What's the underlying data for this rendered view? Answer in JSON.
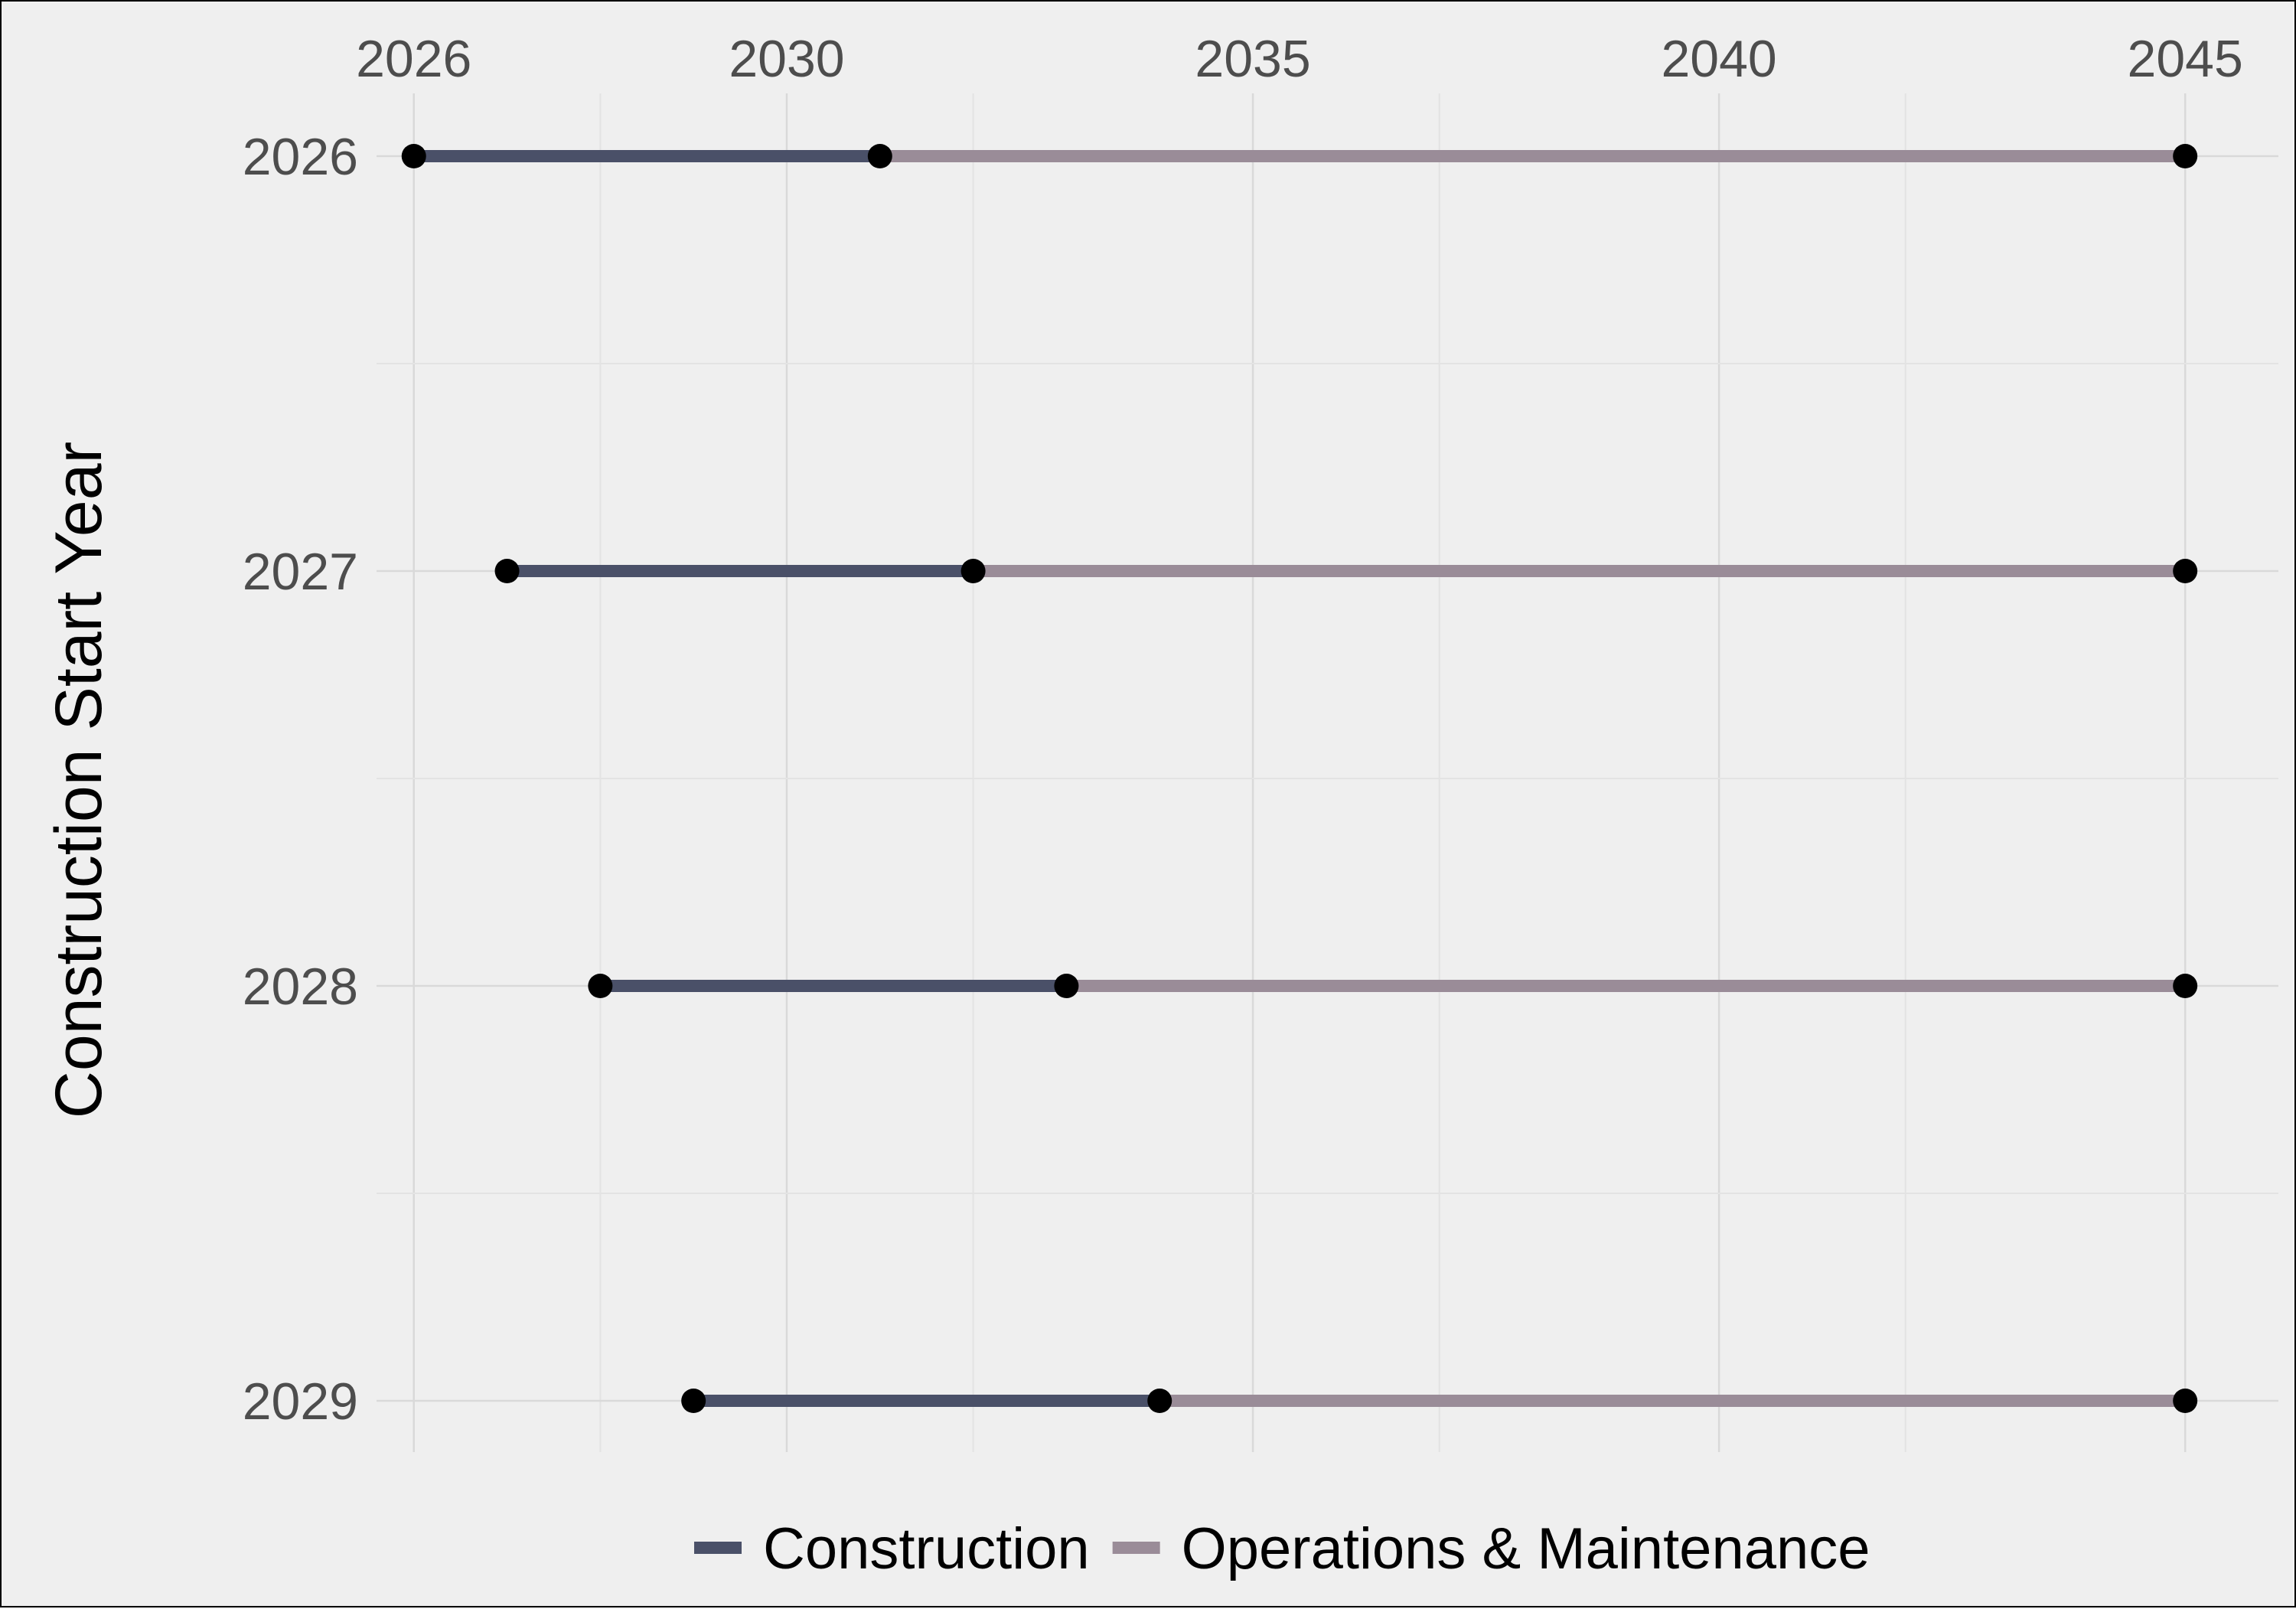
{
  "chart_data": {
    "type": "line",
    "xlabel": "",
    "ylabel": "Construction Start Year",
    "x_ticks": [
      2026,
      2030,
      2035,
      2040,
      2045
    ],
    "x_minor": [
      2028,
      2032,
      2037,
      2042
    ],
    "xlim": [
      2025.6,
      2046.0
    ],
    "y_categories": [
      "2026",
      "2027",
      "2028",
      "2029"
    ],
    "grid": true,
    "legend_position": "bottom",
    "series": [
      {
        "name": "Construction",
        "color": "#4a5068"
      },
      {
        "name": "Operations & Maintenance",
        "color": "#9a8c98"
      }
    ],
    "segments": [
      {
        "row": "2026",
        "construction": [
          2026,
          2031
        ],
        "operations": [
          2031,
          2045
        ]
      },
      {
        "row": "2027",
        "construction": [
          2027,
          2032
        ],
        "operations": [
          2032,
          2045
        ]
      },
      {
        "row": "2028",
        "construction": [
          2028,
          2033
        ],
        "operations": [
          2033,
          2045
        ]
      },
      {
        "row": "2029",
        "construction": [
          2029,
          2034
        ],
        "operations": [
          2034,
          2045
        ]
      }
    ],
    "point_color": "#000000"
  }
}
